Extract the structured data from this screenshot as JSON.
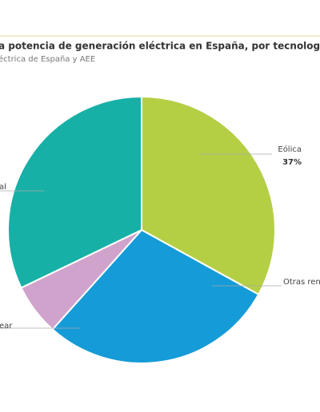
{
  "chart_data": {
    "type": "pie",
    "title": "a potencia de generación eléctrica en España, por tecnología, en",
    "subtitle": "éctrica de España y AEE",
    "categories": [
      "Eólica",
      "Otras ren",
      "ear",
      "al"
    ],
    "values": [
      37,
      32,
      7,
      36
    ],
    "value_labels": [
      "37%",
      null,
      null,
      null
    ],
    "colors": [
      "#b5cf45",
      "#159bd7",
      "#d0a3cc",
      "#17b0a6"
    ]
  }
}
